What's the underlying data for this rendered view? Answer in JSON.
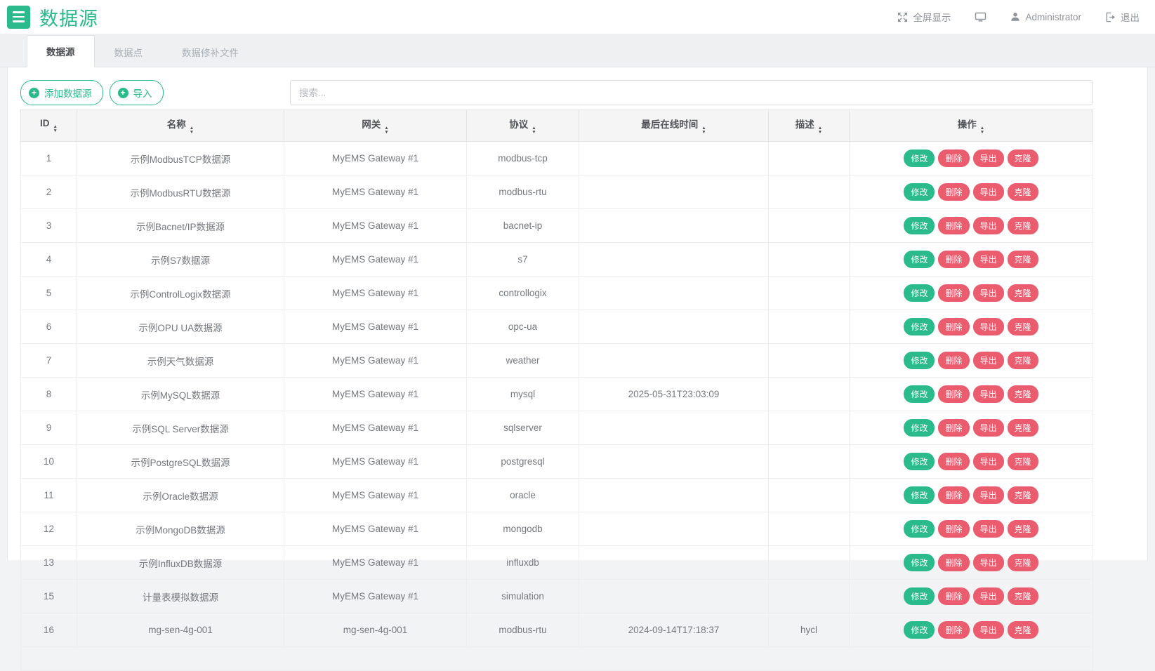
{
  "colors": {
    "accent_green": "#2aba8b",
    "danger_red": "#ea5c6e"
  },
  "topbar": {
    "title": "数据源",
    "fullscreen_label": "全屏显示",
    "user_label": "Administrator",
    "logout_label": "退出"
  },
  "tabs": [
    {
      "label": "数据源",
      "active": true
    },
    {
      "label": "数据点",
      "active": false
    },
    {
      "label": "数据修补文件",
      "active": false
    }
  ],
  "toolbar": {
    "add_button_label": "添加数据源",
    "import_button_label": "导入",
    "search_placeholder": "搜索..."
  },
  "table": {
    "columns": [
      "ID",
      "名称",
      "网关",
      "协议",
      "最后在线时间",
      "描述",
      "操作"
    ],
    "action_labels": {
      "edit": "修改",
      "delete": "删除",
      "export": "导出",
      "clone": "克隆"
    },
    "rows": [
      {
        "id": "1",
        "name": "示例ModbusTCP数据源",
        "gateway": "MyEMS Gateway #1",
        "protocol": "modbus-tcp",
        "last_seen": "",
        "description": ""
      },
      {
        "id": "2",
        "name": "示例ModbusRTU数据源",
        "gateway": "MyEMS Gateway #1",
        "protocol": "modbus-rtu",
        "last_seen": "",
        "description": ""
      },
      {
        "id": "3",
        "name": "示例Bacnet/IP数据源",
        "gateway": "MyEMS Gateway #1",
        "protocol": "bacnet-ip",
        "last_seen": "",
        "description": ""
      },
      {
        "id": "4",
        "name": "示例S7数据源",
        "gateway": "MyEMS Gateway #1",
        "protocol": "s7",
        "last_seen": "",
        "description": ""
      },
      {
        "id": "5",
        "name": "示例ControlLogix数据源",
        "gateway": "MyEMS Gateway #1",
        "protocol": "controllogix",
        "last_seen": "",
        "description": ""
      },
      {
        "id": "6",
        "name": "示例OPU UA数据源",
        "gateway": "MyEMS Gateway #1",
        "protocol": "opc-ua",
        "last_seen": "",
        "description": ""
      },
      {
        "id": "7",
        "name": "示例天气数据源",
        "gateway": "MyEMS Gateway #1",
        "protocol": "weather",
        "last_seen": "",
        "description": ""
      },
      {
        "id": "8",
        "name": "示例MySQL数据源",
        "gateway": "MyEMS Gateway #1",
        "protocol": "mysql",
        "last_seen": "2025-05-31T23:03:09",
        "description": ""
      },
      {
        "id": "9",
        "name": "示例SQL Server数据源",
        "gateway": "MyEMS Gateway #1",
        "protocol": "sqlserver",
        "last_seen": "",
        "description": ""
      },
      {
        "id": "10",
        "name": "示例PostgreSQL数据源",
        "gateway": "MyEMS Gateway #1",
        "protocol": "postgresql",
        "last_seen": "",
        "description": ""
      },
      {
        "id": "11",
        "name": "示例Oracle数据源",
        "gateway": "MyEMS Gateway #1",
        "protocol": "oracle",
        "last_seen": "",
        "description": ""
      },
      {
        "id": "12",
        "name": "示例MongoDB数据源",
        "gateway": "MyEMS Gateway #1",
        "protocol": "mongodb",
        "last_seen": "",
        "description": ""
      },
      {
        "id": "13",
        "name": "示例InfluxDB数据源",
        "gateway": "MyEMS Gateway #1",
        "protocol": "influxdb",
        "last_seen": "",
        "description": ""
      },
      {
        "id": "15",
        "name": "计量表模拟数据源",
        "gateway": "MyEMS Gateway #1",
        "protocol": "simulation",
        "last_seen": "",
        "description": ""
      },
      {
        "id": "16",
        "name": "mg-sen-4g-001",
        "gateway": "mg-sen-4g-001",
        "protocol": "modbus-rtu",
        "last_seen": "2024-09-14T17:18:37",
        "description": "hycl"
      }
    ]
  }
}
